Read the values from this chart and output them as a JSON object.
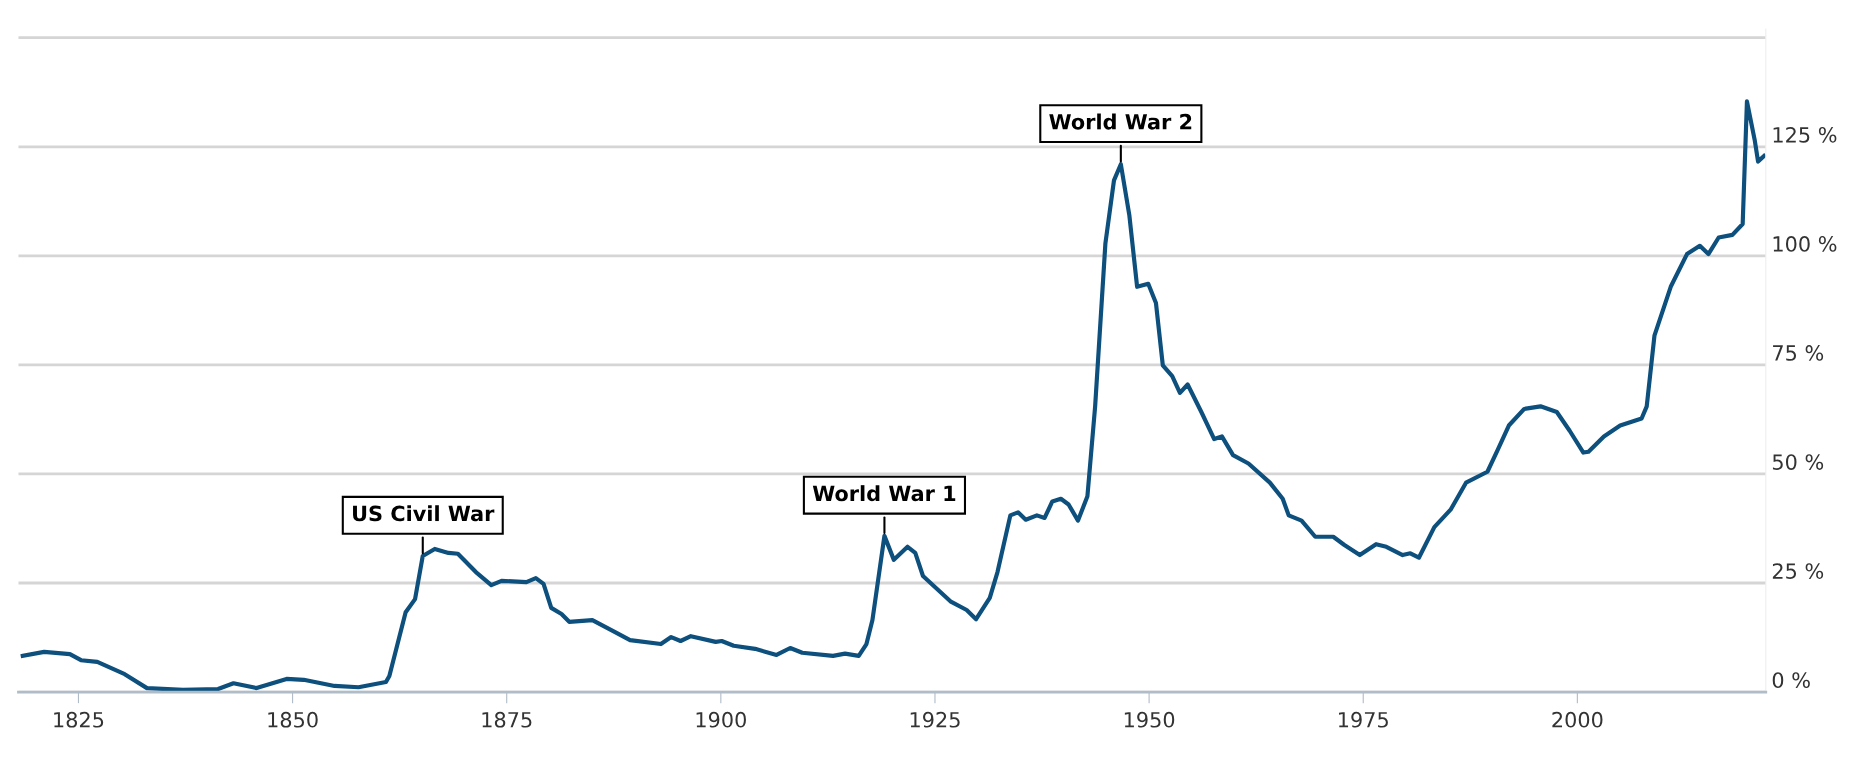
{
  "chart_data": {
    "type": "line",
    "x": [
      1818.5,
      1821,
      1824,
      1825.3,
      1827.2,
      1830.4,
      1833,
      1837.2,
      1841.3,
      1843.1,
      1845.8,
      1849.3,
      1851.3,
      1854.9,
      1857.7,
      1860.9,
      1861.3,
      1863.2,
      1864.3,
      1865.2,
      1866.6,
      1868.2,
      1869.3,
      1871.4,
      1873.2,
      1874.4,
      1877.3,
      1878.4,
      1879.3,
      1880.2,
      1881.4,
      1882.3,
      1885,
      1887.6,
      1889.4,
      1893,
      1894.2,
      1895.3,
      1896.5,
      1899.4,
      1900.1,
      1901.5,
      1904,
      1906.5,
      1908.1,
      1909.5,
      1913.1,
      1914.5,
      1916.1,
      1917,
      1917.7,
      1919.1,
      1920.2,
      1921.8,
      1922.7,
      1923.6,
      1926.8,
      1928.7,
      1929.8,
      1931.4,
      1932.3,
      1933.8,
      1934.7,
      1935.6,
      1936.9,
      1937.8,
      1938.7,
      1939.7,
      1940.6,
      1941.7,
      1942.8,
      1943.7,
      1944.9,
      1945.9,
      1946.7,
      1947.7,
      1948.6,
      1949.9,
      1950.8,
      1951.6,
      1952.7,
      1953.6,
      1954.5,
      1956.1,
      1957.6,
      1958.5,
      1959.8,
      1961.6,
      1964.1,
      1965.6,
      1966.3,
      1967.8,
      1969.4,
      1971.5,
      1972.8,
      1974.6,
      1976.5,
      1977.7,
      1979.6,
      1980.5,
      1981.5,
      1983.3,
      1985.2,
      1987,
      1989.5,
      1990.7,
      1992,
      1993.8,
      1995.7,
      1997.6,
      1999.1,
      2000.7,
      2001.3,
      2003.1,
      2005,
      2007.5,
      2008.1,
      2009,
      2010.9,
      2012.8,
      2014.3,
      2015.3,
      2016.5,
      2018.1,
      2019.3,
      2019.8,
      2020.7,
      2021.1,
      2021.8
    ],
    "series": [
      {
        "color": "#0d4f7d",
        "values": [
          8.3,
          9.2,
          8.7,
          7.3,
          6.9,
          4.1,
          0.9,
          0.5,
          0.7,
          2.0,
          0.9,
          3.0,
          2.8,
          1.4,
          1.1,
          2.3,
          3.7,
          18.3,
          21.3,
          31.2,
          32.8,
          31.9,
          31.7,
          27.5,
          24.5,
          25.5,
          25.2,
          26.1,
          24.8,
          19.3,
          17.9,
          16.1,
          16.5,
          13.8,
          11.9,
          11.0,
          12.6,
          11.7,
          12.8,
          11.5,
          11.7,
          10.6,
          9.9,
          8.5,
          10.1,
          9.0,
          8.3,
          8.8,
          8.3,
          11.0,
          16.5,
          35.8,
          30.3,
          33.3,
          31.9,
          26.6,
          20.8,
          18.8,
          16.7,
          21.6,
          27.5,
          40.5,
          41.2,
          39.5,
          40.5,
          39.9,
          43.7,
          44.3,
          43.0,
          39.3,
          44.9,
          65.5,
          102.9,
          117.3,
          121.0,
          109.2,
          92.9,
          93.6,
          89.2,
          74.9,
          72.4,
          68.6,
          70.5,
          64.2,
          58.0,
          58.6,
          54.3,
          52.4,
          48.0,
          44.3,
          40.5,
          39.3,
          35.6,
          35.6,
          33.7,
          31.4,
          33.9,
          33.3,
          31.4,
          31.8,
          30.8,
          37.8,
          41.8,
          48.0,
          50.5,
          55.5,
          61.1,
          64.9,
          65.5,
          64.2,
          59.9,
          54.9,
          55.1,
          58.6,
          61.1,
          62.7,
          65.5,
          81.7,
          92.9,
          100.4,
          102.3,
          100.4,
          104.2,
          104.8,
          107.3,
          135.4,
          126.6,
          121.6,
          122.9
        ]
      }
    ],
    "xlim": [
      1818,
      2022
    ],
    "xticks": [
      1825,
      1850,
      1875,
      1900,
      1925,
      1950,
      1975,
      2000
    ],
    "ylim": [
      0,
      152
    ],
    "yticks": [
      {
        "value": 0,
        "label": "0 %"
      },
      {
        "value": 25,
        "label": "25 %"
      },
      {
        "value": 50,
        "label": "50 %"
      },
      {
        "value": 75,
        "label": "75 %"
      },
      {
        "value": 100,
        "label": "100 %"
      },
      {
        "value": 125,
        "label": "125 %"
      },
      {
        "value": 150,
        "label": null
      }
    ],
    "grid": "y",
    "marker": "none",
    "line_style": "solid",
    "annotations": [
      {
        "text": "US Civil War",
        "x": 1865.2,
        "y": 31.2
      },
      {
        "text": "World War 1",
        "x": 1919.1,
        "y": 35.8
      },
      {
        "text": "World War 2",
        "x": 1946.7,
        "y": 121.0
      }
    ]
  }
}
